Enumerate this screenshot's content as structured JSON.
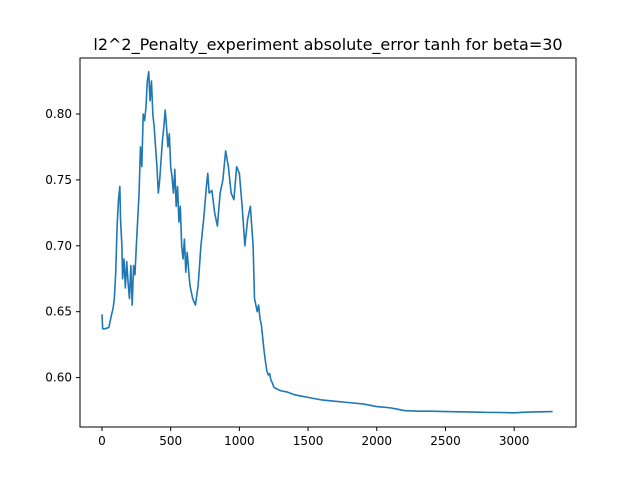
{
  "chart_data": {
    "type": "line",
    "title": "l2^2_Penalty_experiment absolute_error tanh for beta=30",
    "xlabel": "",
    "ylabel": "",
    "xlim": [
      -160,
      3450
    ],
    "ylim": [
      0.5625,
      0.8425
    ],
    "xticks": [
      0,
      500,
      1000,
      1500,
      2000,
      2500,
      3000
    ],
    "xtick_labels": [
      "0",
      "500",
      "1000",
      "1500",
      "2000",
      "2500",
      "3000"
    ],
    "yticks": [
      0.6,
      0.65,
      0.7,
      0.75,
      0.8
    ],
    "ytick_labels": [
      "0.60",
      "0.65",
      "0.70",
      "0.75",
      "0.80"
    ],
    "grid": false,
    "line_color": "#1f77b4",
    "series": [
      {
        "name": "",
        "x": [
          0,
          5,
          20,
          50,
          70,
          80,
          90,
          100,
          110,
          120,
          130,
          135,
          145,
          150,
          160,
          170,
          180,
          190,
          200,
          210,
          220,
          230,
          240,
          250,
          260,
          270,
          280,
          290,
          300,
          310,
          320,
          330,
          340,
          350,
          360,
          370,
          380,
          390,
          400,
          410,
          420,
          430,
          440,
          450,
          460,
          470,
          480,
          490,
          500,
          510,
          520,
          530,
          540,
          550,
          560,
          570,
          580,
          590,
          600,
          610,
          620,
          640,
          660,
          680,
          700,
          720,
          740,
          760,
          770,
          780,
          800,
          820,
          840,
          860,
          880,
          900,
          920,
          940,
          960,
          980,
          1000,
          1020,
          1040,
          1060,
          1080,
          1100,
          1110,
          1120,
          1130,
          1140,
          1150,
          1160,
          1170,
          1180,
          1190,
          1200,
          1210,
          1220,
          1230,
          1240,
          1250,
          1260,
          1280,
          1300,
          1350,
          1400,
          1450,
          1500,
          1600,
          1700,
          1800,
          1900,
          2000,
          2100,
          2150,
          2200,
          2300,
          2400,
          2500,
          2600,
          2700,
          2800,
          2900,
          3000,
          3100,
          3200,
          3280
        ],
        "y": [
          0.648,
          0.637,
          0.637,
          0.638,
          0.648,
          0.652,
          0.66,
          0.68,
          0.715,
          0.735,
          0.745,
          0.72,
          0.7,
          0.675,
          0.69,
          0.668,
          0.688,
          0.672,
          0.66,
          0.685,
          0.655,
          0.685,
          0.678,
          0.7,
          0.72,
          0.74,
          0.775,
          0.76,
          0.8,
          0.795,
          0.805,
          0.825,
          0.832,
          0.81,
          0.825,
          0.8,
          0.79,
          0.775,
          0.76,
          0.74,
          0.75,
          0.765,
          0.78,
          0.79,
          0.803,
          0.79,
          0.775,
          0.785,
          0.76,
          0.752,
          0.74,
          0.758,
          0.73,
          0.745,
          0.718,
          0.73,
          0.7,
          0.69,
          0.705,
          0.68,
          0.695,
          0.67,
          0.66,
          0.655,
          0.67,
          0.7,
          0.72,
          0.745,
          0.755,
          0.74,
          0.742,
          0.725,
          0.715,
          0.74,
          0.75,
          0.772,
          0.76,
          0.74,
          0.735,
          0.76,
          0.755,
          0.73,
          0.7,
          0.72,
          0.73,
          0.7,
          0.66,
          0.655,
          0.65,
          0.655,
          0.645,
          0.64,
          0.63,
          0.62,
          0.612,
          0.605,
          0.602,
          0.603,
          0.598,
          0.596,
          0.593,
          0.592,
          0.591,
          0.59,
          0.589,
          0.587,
          0.586,
          0.585,
          0.583,
          0.582,
          0.581,
          0.58,
          0.578,
          0.577,
          0.576,
          0.575,
          0.5745,
          0.5745,
          0.5742,
          0.574,
          0.5738,
          0.5736,
          0.5735,
          0.5733,
          0.5738,
          0.574,
          0.5742
        ]
      }
    ]
  }
}
